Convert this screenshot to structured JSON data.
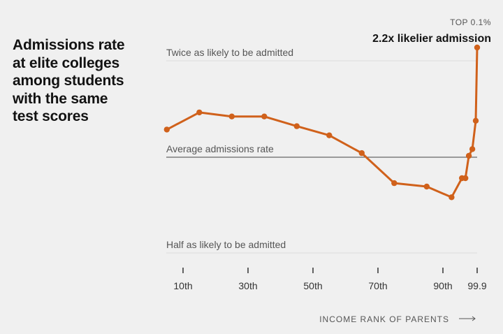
{
  "chart_data": {
    "type": "line",
    "title": "Admissions rate\nat elite colleges\namong students\nwith the same\ntest scores",
    "xlabel": "INCOME RANK OF PARENTS",
    "x_ticks": [
      "10th",
      "30th",
      "50th",
      "70th",
      "90th",
      "99.9"
    ],
    "reference_lines": {
      "twice": "Twice as likely to be admitted",
      "average": "Average admissions rate",
      "half": "Half as likely to be admitted"
    },
    "y_scale": "log2 ratio to average",
    "y_range": [
      0.5,
      2.0
    ],
    "annotation": {
      "label": "TOP 0.1%",
      "callout": "2.2x likelier admission"
    },
    "series": [
      {
        "color": "#d0611b",
        "points": [
          {
            "x": 5,
            "y": 1.22
          },
          {
            "x": 15,
            "y": 1.38
          },
          {
            "x": 25,
            "y": 1.34
          },
          {
            "x": 35,
            "y": 1.34
          },
          {
            "x": 45,
            "y": 1.25
          },
          {
            "x": 55,
            "y": 1.17
          },
          {
            "x": 65,
            "y": 1.03
          },
          {
            "x": 75,
            "y": 0.83
          },
          {
            "x": 85,
            "y": 0.81
          },
          {
            "x": 92.5,
            "y": 0.75
          },
          {
            "x": 95.5,
            "y": 0.86
          },
          {
            "x": 96.5,
            "y": 0.86
          },
          {
            "x": 97.5,
            "y": 1.01
          },
          {
            "x": 98.5,
            "y": 1.06
          },
          {
            "x": 99.5,
            "y": 1.3
          },
          {
            "x": 99.9,
            "y": 2.2
          }
        ]
      }
    ]
  }
}
